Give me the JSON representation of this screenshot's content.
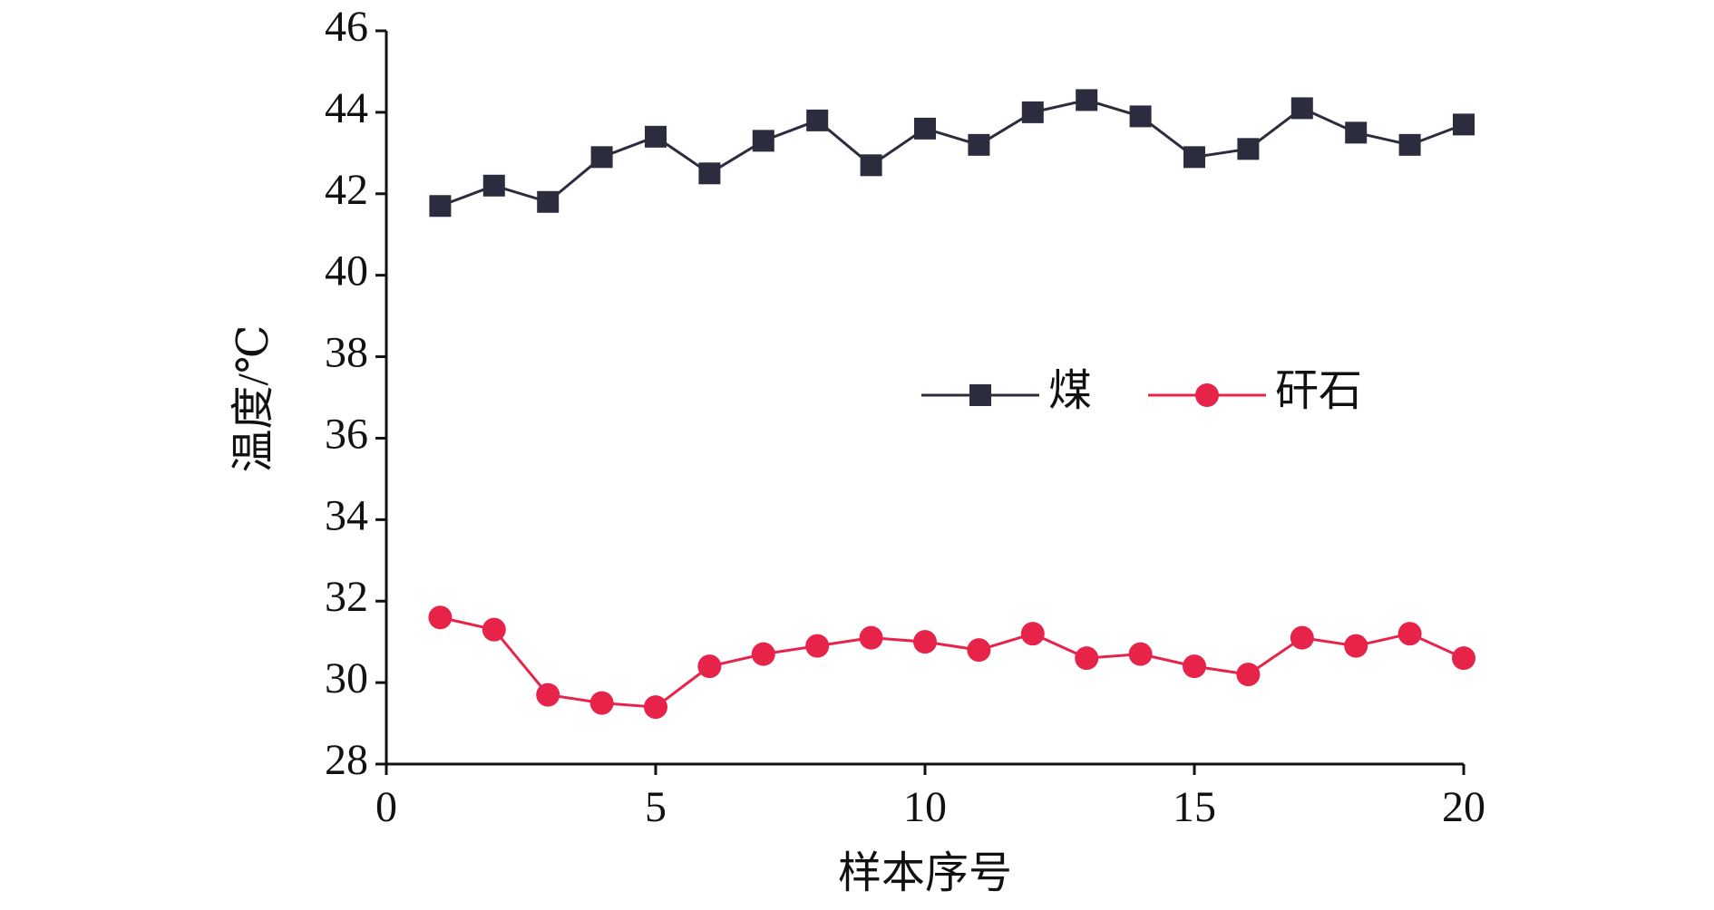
{
  "chart_data": {
    "type": "line",
    "x_label": "样本序号",
    "y_label": "温度/℃",
    "x": [
      1,
      2,
      3,
      4,
      5,
      6,
      7,
      8,
      9,
      10,
      11,
      12,
      13,
      14,
      15,
      16,
      17,
      18,
      19,
      20
    ],
    "series": [
      {
        "name": "煤",
        "color": "#2b2d3e",
        "marker": "square",
        "values": [
          41.7,
          42.2,
          41.8,
          42.9,
          43.4,
          42.5,
          43.3,
          43.8,
          42.7,
          43.6,
          43.2,
          44.0,
          44.3,
          43.9,
          42.9,
          43.1,
          44.1,
          43.5,
          43.2,
          43.7
        ]
      },
      {
        "name": "矸石",
        "color": "#e8234a",
        "marker": "circle",
        "values": [
          31.6,
          31.3,
          29.7,
          29.5,
          29.4,
          30.4,
          30.7,
          30.9,
          31.1,
          31.0,
          30.8,
          31.2,
          30.6,
          30.7,
          30.4,
          30.2,
          31.1,
          30.9,
          31.2,
          30.6
        ]
      }
    ],
    "xlim": [
      0,
      20
    ],
    "xticks": [
      0,
      5,
      10,
      15,
      20
    ],
    "ylim": [
      28,
      46
    ],
    "yticks": [
      28,
      30,
      32,
      34,
      36,
      38,
      40,
      42,
      44,
      46
    ],
    "grid": false,
    "legend": "center"
  }
}
